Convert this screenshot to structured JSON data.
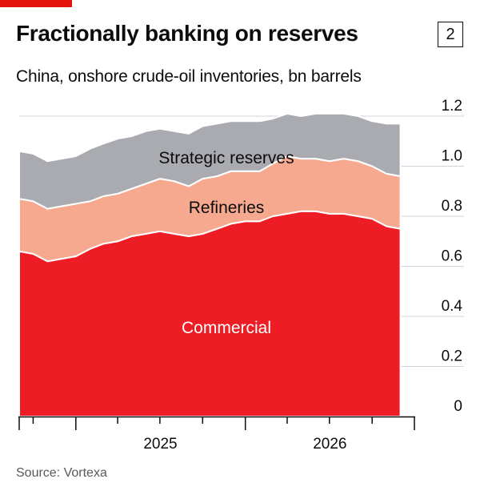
{
  "header": {
    "title": "Fractionally banking on reserves",
    "badge": "2",
    "subtitle": "China, onshore crude-oil inventories, bn barrels"
  },
  "footer": {
    "source": "Source: Vortexa"
  },
  "colors": {
    "accent": "#e3120b",
    "commercial": "#ee1c25",
    "refineries": "#f6a98f",
    "strategic": "#a9abb0",
    "grid": "#cfd4da"
  },
  "chart_data": {
    "type": "area",
    "stacked": true,
    "ylim": [
      0,
      1.2
    ],
    "yticks": [
      0,
      0.2,
      0.4,
      0.6,
      0.8,
      1.0,
      1.2
    ],
    "ytick_labels": [
      "0",
      "0.2",
      "0.4",
      "0.6",
      "0.8",
      "1.0",
      "1.2"
    ],
    "y_axis_side": "right",
    "grid": true,
    "x_range": [
      "2024-09-01",
      "2026-12-31"
    ],
    "year_labels": [
      "2025",
      "2026"
    ],
    "quarter_ticks": [
      "2024-10-01",
      "2025-01-01",
      "2025-04-01",
      "2025-07-01",
      "2025-10-01",
      "2026-01-01",
      "2026-04-01",
      "2026-07-01",
      "2026-10-01"
    ],
    "x": [
      "2024-09-01",
      "2024-10-01",
      "2024-11-01",
      "2024-12-01",
      "2025-01-01",
      "2025-02-01",
      "2025-03-01",
      "2025-04-01",
      "2025-05-01",
      "2025-06-01",
      "2025-07-01",
      "2025-08-01",
      "2025-09-01",
      "2025-10-01",
      "2025-11-01",
      "2025-12-01",
      "2026-01-01",
      "2026-02-01",
      "2026-03-01",
      "2026-04-01",
      "2026-05-01",
      "2026-06-01",
      "2026-07-01",
      "2026-08-01",
      "2026-09-01",
      "2026-10-01",
      "2026-11-01",
      "2026-12-01"
    ],
    "series": [
      {
        "name": "Commercial",
        "values": [
          0.66,
          0.65,
          0.62,
          0.63,
          0.64,
          0.67,
          0.69,
          0.7,
          0.72,
          0.73,
          0.74,
          0.73,
          0.72,
          0.73,
          0.75,
          0.77,
          0.78,
          0.78,
          0.8,
          0.81,
          0.82,
          0.82,
          0.81,
          0.81,
          0.8,
          0.79,
          0.76,
          0.75
        ]
      },
      {
        "name": "Refineries",
        "values": [
          0.21,
          0.21,
          0.21,
          0.21,
          0.21,
          0.19,
          0.19,
          0.19,
          0.19,
          0.2,
          0.21,
          0.21,
          0.2,
          0.22,
          0.21,
          0.21,
          0.2,
          0.2,
          0.21,
          0.23,
          0.21,
          0.21,
          0.21,
          0.22,
          0.22,
          0.21,
          0.21,
          0.21
        ]
      },
      {
        "name": "Strategic reserves",
        "values": [
          0.19,
          0.19,
          0.19,
          0.19,
          0.19,
          0.21,
          0.21,
          0.22,
          0.21,
          0.21,
          0.2,
          0.2,
          0.21,
          0.21,
          0.21,
          0.2,
          0.2,
          0.2,
          0.18,
          0.17,
          0.17,
          0.18,
          0.19,
          0.18,
          0.18,
          0.18,
          0.2,
          0.21
        ]
      }
    ]
  }
}
